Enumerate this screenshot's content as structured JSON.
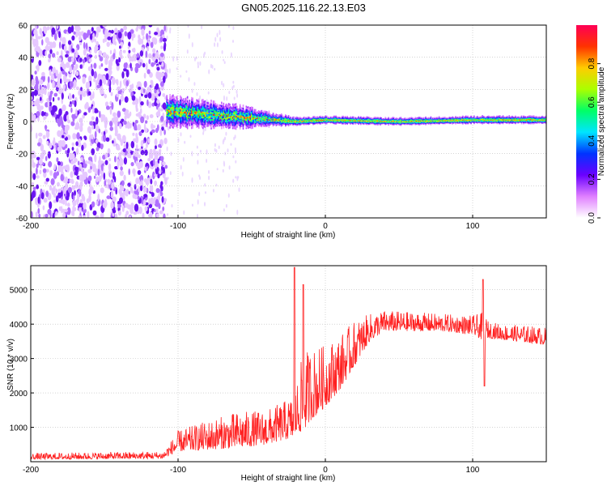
{
  "figure_title": "GN05.2025.116.22.13.E03",
  "chart_data": [
    {
      "type": "heatmap",
      "title": "GN05.2025.116.22.13.E03",
      "xlabel": "Height of straight line (km)",
      "ylabel": "Frequency (Hz)",
      "xlim": [
        -200,
        150
      ],
      "ylim": [
        -60,
        60
      ],
      "xticks": [
        -200,
        -100,
        0,
        100
      ],
      "yticks": [
        60,
        40,
        20,
        0,
        -20,
        -40,
        -60
      ],
      "grid": true,
      "colorbar": {
        "label": "Normalized spectral amplitude",
        "range": [
          0.0,
          1.0
        ],
        "ticks": [
          "0.0",
          "0.2",
          "0.4",
          "0.6",
          "0.8"
        ],
        "colors": [
          "#ffffff",
          "#e080ff",
          "#6a00ff",
          "#0033ff",
          "#00e5ff",
          "#00ff66",
          "#aaff00",
          "#ffcc00",
          "#ff3300",
          "#ff0055"
        ]
      },
      "regions": [
        {
          "name": "noise",
          "x_range": [
            -200,
            -108
          ],
          "freq_range": [
            -60,
            60
          ],
          "amplitude": 0.1
        },
        {
          "name": "signal_band",
          "x_range": [
            -108,
            150
          ],
          "center_freq": [
            [
              -108,
              6
            ],
            [
              -80,
              4
            ],
            [
              -50,
              2
            ],
            [
              -20,
              0
            ],
            [
              0,
              1
            ],
            [
              50,
              0
            ],
            [
              100,
              1
            ],
            [
              150,
              1
            ]
          ],
          "half_width": [
            [
              -108,
              8
            ],
            [
              -60,
              6
            ],
            [
              -20,
              2
            ],
            [
              150,
              2
            ]
          ],
          "peak_amplitude": 0.95
        }
      ]
    },
    {
      "type": "line",
      "xlabel": "Height of straight line (km)",
      "ylabel": "SNR (10 * v/v)",
      "xlim": [
        -200,
        150
      ],
      "ylim": [
        0,
        5700
      ],
      "xticks": [
        -200,
        -100,
        0,
        100
      ],
      "yticks": [
        1000,
        2000,
        3000,
        4000,
        5000
      ],
      "grid": true,
      "series": [
        {
          "name": "SNR",
          "color": "#ff2020",
          "x": [
            -200,
            -150,
            -110,
            -100,
            -80,
            -60,
            -40,
            -22,
            -20,
            -15,
            -10,
            0,
            10,
            20,
            30,
            40,
            60,
            80,
            100,
            108,
            110,
            120,
            140,
            150
          ],
          "y_low": [
            70,
            80,
            90,
            300,
            350,
            400,
            500,
            700,
            800,
            900,
            1200,
            1600,
            2100,
            2800,
            3500,
            3800,
            3800,
            3800,
            3700,
            3500,
            3600,
            3550,
            3450,
            3400
          ],
          "y_high": [
            250,
            280,
            300,
            900,
            1200,
            1450,
            1500,
            1900,
            2200,
            3200,
            3300,
            3400,
            3700,
            4100,
            4300,
            4400,
            4350,
            4300,
            4250,
            4350,
            4100,
            4000,
            3950,
            3900
          ],
          "spikes": [
            {
              "x": -21,
              "y": 5650
            },
            {
              "x": -15,
              "y": 5150
            },
            {
              "x": 107,
              "y": 5300
            },
            {
              "x": 108,
              "y": 2200
            }
          ]
        }
      ]
    }
  ]
}
